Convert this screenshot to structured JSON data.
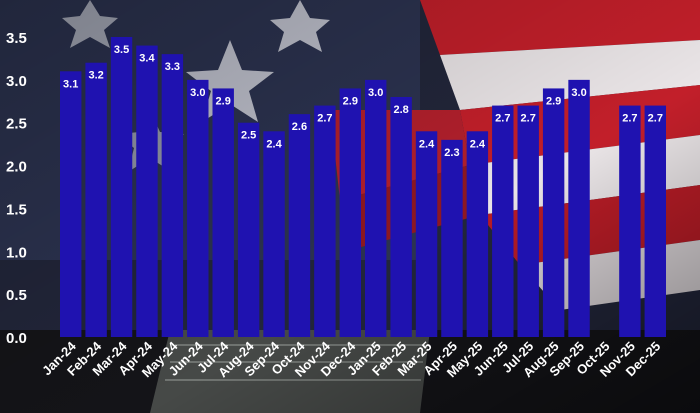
{
  "chart_data": {
    "type": "bar",
    "title": "",
    "xlabel": "",
    "ylabel": "",
    "categories": [
      "Jan-24",
      "Feb-24",
      "Mar-24",
      "Apr-24",
      "May-24",
      "Jun-24",
      "Jul-24",
      "Aug-24",
      "Sep-24",
      "Oct-24",
      "Nov-24",
      "Dec-24",
      "Jan-25",
      "Feb-25",
      "Mar-25",
      "Apr-25",
      "May-25",
      "Jun-25",
      "Jul-25",
      "Aug-25",
      "Sep-25",
      "Oct-25",
      "Nov-25",
      "Dec-25"
    ],
    "values": [
      3.1,
      3.2,
      3.5,
      3.4,
      3.3,
      3.0,
      2.9,
      2.5,
      2.4,
      2.6,
      2.7,
      2.9,
      3.0,
      2.8,
      2.4,
      2.3,
      2.4,
      2.7,
      2.7,
      2.9,
      3.0,
      null,
      2.7,
      2.7
    ],
    "value_labels": [
      "3.1",
      "3.2",
      "3.5",
      "3.4",
      "3.3",
      "3.0",
      "2.9",
      "2.5",
      "2.4",
      "2.6",
      "2.7",
      "2.9",
      "3.0",
      "2.8",
      "2.4",
      "2.3",
      "2.4",
      "2.7",
      "2.7",
      "2.9",
      "3.0",
      "",
      "2.7",
      "2.7"
    ],
    "y_ticks": [
      "0.0",
      "0.5",
      "1.0",
      "1.5",
      "2.0",
      "2.5",
      "3.0",
      "3.5"
    ],
    "ylim": [
      0,
      3.7
    ],
    "grid": false,
    "colors": {
      "bar": "#1f12b0",
      "text": "#ffffff"
    }
  }
}
